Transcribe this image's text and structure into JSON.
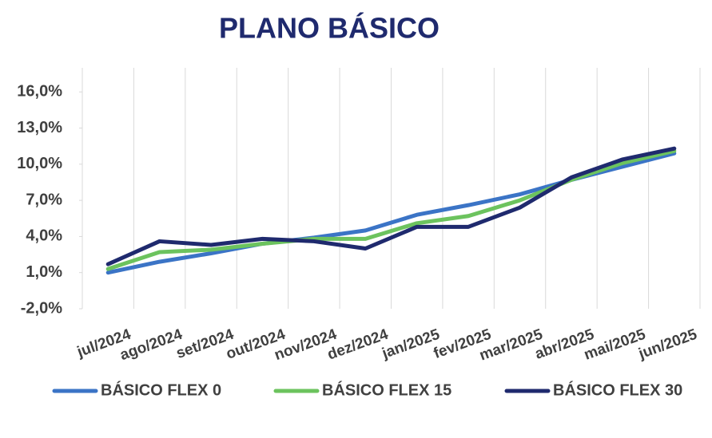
{
  "chart_data": {
    "type": "line",
    "title": "PLANO BÁSICO",
    "categories": [
      "jul/2024",
      "ago/2024",
      "set/2024",
      "out/2024",
      "nov/2024",
      "dez/2024",
      "jan/2025",
      "fev/2025",
      "mar/2025",
      "abr/2025",
      "mai/2025",
      "jun/2025"
    ],
    "series": [
      {
        "name": "BÁSICO FLEX 0",
        "color": "#3b74c6",
        "values": [
          1.0,
          1.9,
          2.6,
          3.4,
          3.9,
          4.5,
          5.8,
          6.6,
          7.5,
          8.7,
          9.8,
          10.9
        ]
      },
      {
        "name": "BÁSICO FLEX 15",
        "color": "#6cc35e",
        "values": [
          1.3,
          2.7,
          2.9,
          3.4,
          3.8,
          3.8,
          5.1,
          5.7,
          7.0,
          8.7,
          10.1,
          11.1
        ]
      },
      {
        "name": "BÁSICO FLEX 30",
        "color": "#1f2a6e",
        "values": [
          1.7,
          3.6,
          3.3,
          3.8,
          3.6,
          3.0,
          4.8,
          4.8,
          6.4,
          8.9,
          10.4,
          11.3
        ]
      }
    ],
    "ylim": [
      -2,
      18
    ],
    "yticks": [
      {
        "value": -2,
        "label": "-2,0%"
      },
      {
        "value": 1,
        "label": "1,0%"
      },
      {
        "value": 4,
        "label": "4,0%"
      },
      {
        "value": 7,
        "label": "7,0%"
      },
      {
        "value": 10,
        "label": "10,0%"
      },
      {
        "value": 13,
        "label": "13,0%"
      },
      {
        "value": 16,
        "label": "16,0%"
      }
    ],
    "legend": "bottom"
  }
}
